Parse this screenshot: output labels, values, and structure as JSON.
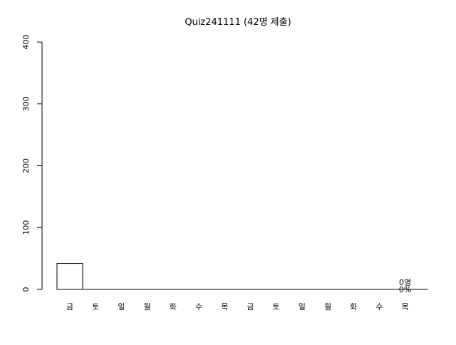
{
  "chart_data": {
    "type": "bar",
    "title": "Quiz241111 (42명 제출)",
    "xlabel": "",
    "ylabel": "",
    "categories": [
      "금",
      "토",
      "일",
      "월",
      "화",
      "수",
      "목",
      "금",
      "토",
      "일",
      "월",
      "화",
      "수",
      "목"
    ],
    "values": [
      42,
      0,
      0,
      0,
      0,
      0,
      0,
      0,
      0,
      0,
      0,
      0,
      0,
      0
    ],
    "ylim": [
      0,
      400
    ],
    "yticks": [
      0,
      100,
      200,
      300,
      400
    ],
    "ytick_labels": [
      "0",
      "100",
      "200",
      "300",
      "400"
    ],
    "grid": false,
    "legend": "none",
    "annotations": {
      "last_bar_count": "0명",
      "last_bar_percent": "0%"
    },
    "colors": {
      "bar_fill": "#ffffff",
      "bar_stroke": "#000000"
    }
  }
}
